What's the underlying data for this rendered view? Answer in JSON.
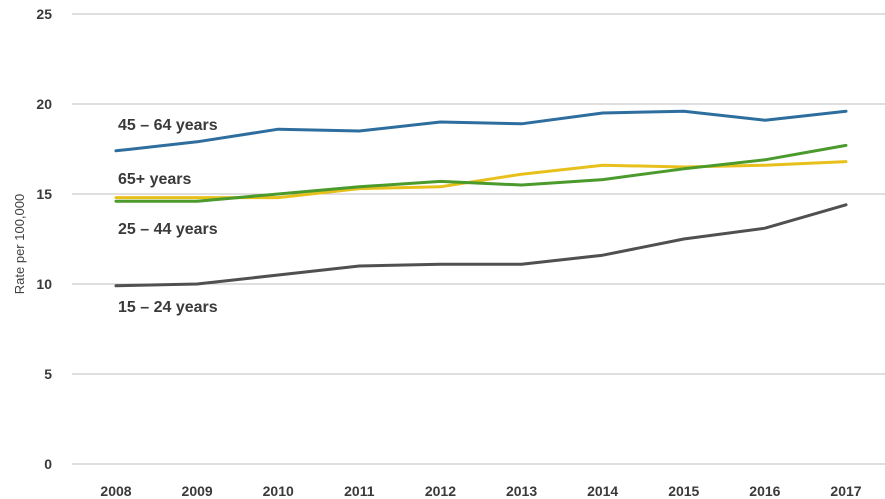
{
  "chart_data": {
    "type": "line",
    "ylabel": "Rate per 100,000",
    "xlabel": "",
    "ylim": [
      0,
      25
    ],
    "yticks": [
      0,
      5,
      10,
      15,
      20,
      25
    ],
    "grid": true,
    "legend": "inline labels",
    "categories": [
      "2008",
      "2009",
      "2010",
      "2011",
      "2012",
      "2013",
      "2014",
      "2015",
      "2016",
      "2017"
    ],
    "series": [
      {
        "name": "45 – 64 years",
        "color": "#2e6e9e",
        "values": [
          17.4,
          17.9,
          18.6,
          18.5,
          19.0,
          18.9,
          19.5,
          19.6,
          19.1,
          19.6
        ]
      },
      {
        "name": "65+ years",
        "color": "#e8c01c",
        "values": [
          14.8,
          14.8,
          14.8,
          15.3,
          15.4,
          16.1,
          16.6,
          16.5,
          16.6,
          16.8
        ]
      },
      {
        "name": "25 – 44 years",
        "color": "#4b9a2c",
        "values": [
          14.6,
          14.6,
          15.0,
          15.4,
          15.7,
          15.5,
          15.8,
          16.4,
          16.9,
          17.7
        ]
      },
      {
        "name": "15 – 24 years",
        "color": "#505050",
        "values": [
          9.9,
          10.0,
          10.5,
          11.0,
          11.1,
          11.1,
          11.6,
          12.5,
          13.1,
          14.4
        ]
      }
    ]
  }
}
